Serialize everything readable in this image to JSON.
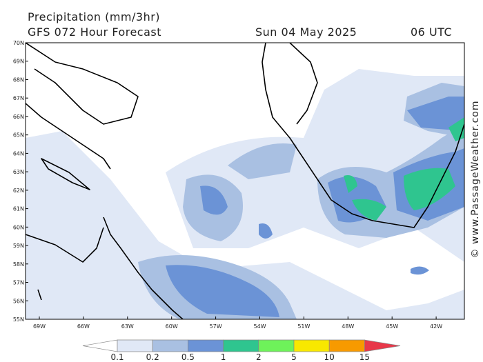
{
  "header": {
    "title": "Precipitation (mm/3hr)",
    "subtitle": "GFS 072 Hour Forecast",
    "date": "Sun 04 May 2025",
    "time": "06 UTC"
  },
  "map": {
    "lat_labels": [
      "70N",
      "69N",
      "68N",
      "67N",
      "66N",
      "65N",
      "64N",
      "63N",
      "62N",
      "61N",
      "60N",
      "59N",
      "58N",
      "57N",
      "56N",
      "55N"
    ],
    "lon_labels": [
      "69W",
      "66W",
      "63W",
      "60W",
      "57W",
      "54W",
      "51W",
      "48W",
      "45W",
      "42W"
    ]
  },
  "legend": {
    "levels": [
      "0.1",
      "0.2",
      "0.5",
      "1",
      "2",
      "5",
      "10",
      "15"
    ],
    "colors": [
      "#ffffff",
      "#e0e8f6",
      "#a9c0e2",
      "#6b93d6",
      "#2fc58f",
      "#6ef25a",
      "#f8e800",
      "#f79a00",
      "#e8384a"
    ]
  },
  "credit": "© www.PassageWeather.com"
}
